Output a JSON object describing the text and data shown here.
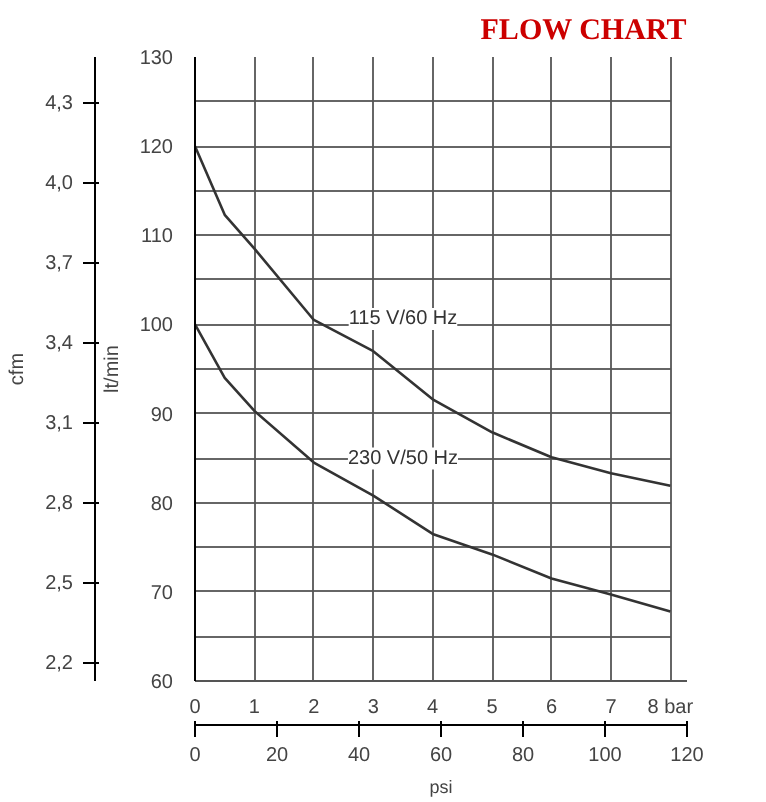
{
  "chart_data": {
    "type": "line",
    "title": "FLOW CHART",
    "xlabel": null,
    "ylabel": "lt/min",
    "y2label": "cfm",
    "x2label": "psi",
    "x": [
      0,
      0.5,
      1,
      2,
      3,
      4,
      5,
      6,
      7,
      8
    ],
    "series": [
      {
        "name": "115 V/60 Hz",
        "color": "#333333",
        "values": [
          120,
          112.3,
          108.5,
          100.5,
          97,
          91.6,
          87.9,
          85.1,
          83.3,
          81.9
        ]
      },
      {
        "name": "230 V/50 Hz",
        "color": "#333333",
        "values": [
          100,
          94,
          90.3,
          84.5,
          80.8,
          76.5,
          74.2,
          71.5,
          69.7,
          67.8
        ]
      }
    ],
    "xlim": [
      0,
      8.28
    ],
    "ylim": [
      60,
      130
    ],
    "y2lim": [
      2.13,
      4.47
    ],
    "x2lim": [
      0,
      120
    ],
    "xticks": [
      0,
      1,
      2,
      3,
      4,
      5,
      6,
      7,
      {
        "value": 8,
        "label": "8 bar"
      }
    ],
    "yticks": [
      60,
      {
        "value": 65,
        "label": null
      },
      70,
      {
        "value": 75,
        "label": null
      },
      80,
      {
        "value": 85,
        "label": null
      },
      90,
      {
        "value": 95,
        "label": null
      },
      100,
      {
        "value": 105,
        "label": null
      },
      110,
      {
        "value": 115,
        "label": null
      },
      120,
      {
        "value": 125,
        "label": null
      },
      130
    ],
    "y2ticks": [
      {
        "value": 2.2,
        "label": "2,2"
      },
      {
        "value": 2.5,
        "label": "2,5"
      },
      {
        "value": 2.8,
        "label": "2,8"
      },
      {
        "value": 3.1,
        "label": "3,1"
      },
      {
        "value": 3.4,
        "label": "3,4"
      },
      {
        "value": 3.7,
        "label": "3,7"
      },
      {
        "value": 4.0,
        "label": "4,0"
      },
      {
        "value": 4.3,
        "label": "4,3"
      }
    ],
    "x2ticks": [
      0,
      20,
      40,
      60,
      80,
      100,
      120
    ],
    "grid": true,
    "marker": "none",
    "line_style": "solid"
  }
}
